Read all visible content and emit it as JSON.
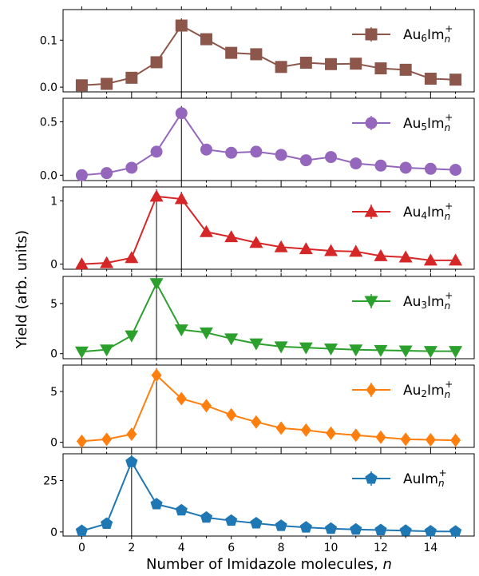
{
  "chart_data": {
    "type": "line",
    "xlabel": "Number of Imidazole molecules, ",
    "xlabel_var": "n",
    "ylabel": "Yield (arb. units)",
    "x": [
      0,
      1,
      2,
      3,
      4,
      5,
      6,
      7,
      8,
      9,
      10,
      11,
      12,
      13,
      14,
      15
    ],
    "xticks": [
      "0",
      "2",
      "4",
      "6",
      "8",
      "10",
      "12",
      "14"
    ],
    "panels": [
      {
        "series_name": "Au6Imn+",
        "label_main": "Au",
        "label_sub": "6",
        "label_rest": "Im",
        "label_subn": "n",
        "label_sup": "+",
        "color": "#8c564b",
        "marker": "square",
        "values": [
          0.004,
          0.007,
          0.02,
          0.053,
          0.131,
          0.102,
          0.073,
          0.07,
          0.043,
          0.052,
          0.049,
          0.05,
          0.04,
          0.037,
          0.018,
          0.016
        ],
        "ylim": [
          -0.01,
          0.165
        ],
        "yticks": [
          0.0,
          0.1
        ],
        "ytick_labels": [
          "0.0",
          "0.1"
        ],
        "peaks": [
          4
        ]
      },
      {
        "series_name": "Au5Imn+",
        "label_main": "Au",
        "label_sub": "5",
        "label_rest": "Im",
        "label_subn": "n",
        "label_sup": "+",
        "color": "#9467bd",
        "marker": "circle",
        "values": [
          0.0,
          0.02,
          0.07,
          0.22,
          0.58,
          0.24,
          0.21,
          0.22,
          0.19,
          0.14,
          0.17,
          0.11,
          0.09,
          0.07,
          0.06,
          0.05
        ],
        "ylim": [
          -0.05,
          0.72
        ],
        "yticks": [
          0.0,
          0.5
        ],
        "ytick_labels": [
          "0.0",
          "0.5"
        ],
        "peaks": [
          4
        ]
      },
      {
        "series_name": "Au4Imn+",
        "label_main": "Au",
        "label_sub": "4",
        "label_rest": "Im",
        "label_subn": "n",
        "label_sup": "+",
        "color": "#d62728",
        "marker": "triangle-up",
        "values": [
          0.0,
          0.02,
          0.1,
          1.07,
          1.03,
          0.51,
          0.43,
          0.34,
          0.27,
          0.24,
          0.21,
          0.2,
          0.13,
          0.11,
          0.06,
          0.06
        ],
        "ylim": [
          -0.08,
          1.22
        ],
        "yticks": [
          0,
          1
        ],
        "ytick_labels": [
          "0",
          "1"
        ],
        "peaks": [
          3,
          4
        ]
      },
      {
        "series_name": "Au3Imn+",
        "label_main": "Au",
        "label_sub": "3",
        "label_rest": "Im",
        "label_subn": "n",
        "label_sup": "+",
        "color": "#2ca02c",
        "marker": "triangle-down",
        "values": [
          0.2,
          0.4,
          1.8,
          7.0,
          2.4,
          2.1,
          1.5,
          1.0,
          0.7,
          0.6,
          0.5,
          0.4,
          0.35,
          0.3,
          0.25,
          0.25
        ],
        "ylim": [
          -0.5,
          7.7
        ],
        "yticks": [
          0,
          5
        ],
        "ytick_labels": [
          "0",
          "5"
        ],
        "peaks": [
          3
        ]
      },
      {
        "series_name": "Au2Imn+",
        "label_main": "Au",
        "label_sub": "2",
        "label_rest": "Im",
        "label_subn": "n",
        "label_sup": "+",
        "color": "#ff7f0e",
        "marker": "diamond",
        "values": [
          0.1,
          0.3,
          0.8,
          6.6,
          4.3,
          3.6,
          2.7,
          2.0,
          1.4,
          1.2,
          0.9,
          0.7,
          0.5,
          0.3,
          0.25,
          0.2
        ],
        "ylim": [
          -0.5,
          7.6
        ],
        "yticks": [
          0,
          5
        ],
        "ytick_labels": [
          "0",
          "5"
        ],
        "peaks": [
          3
        ]
      },
      {
        "series_name": "AuImn+",
        "label_main": "Au",
        "label_sub": "",
        "label_rest": "Im",
        "label_subn": "n",
        "label_sup": "+",
        "color": "#1f77b4",
        "marker": "pentagon",
        "values": [
          0.5,
          4.0,
          34.0,
          13.5,
          10.5,
          7.0,
          5.5,
          4.2,
          3.0,
          2.2,
          1.6,
          1.2,
          0.9,
          0.6,
          0.3,
          0.2
        ],
        "ylim": [
          -2,
          38
        ],
        "yticks": [
          0,
          25
        ],
        "ytick_labels": [
          "0",
          "25"
        ],
        "peaks": [
          2
        ]
      }
    ]
  }
}
